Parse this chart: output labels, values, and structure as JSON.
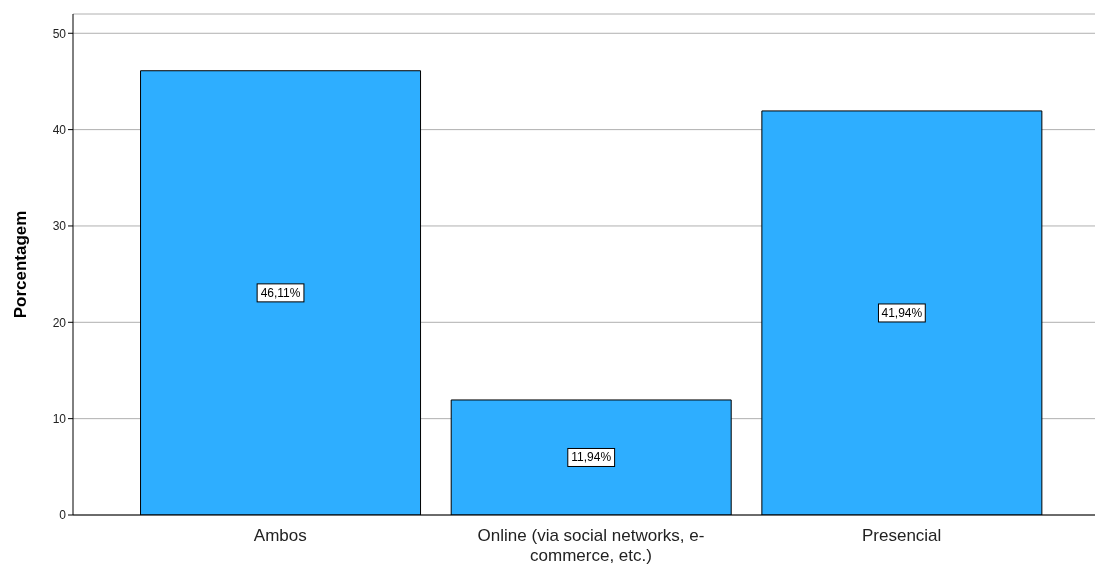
{
  "chart_data": {
    "type": "bar",
    "ylabel": "Porcentagem",
    "categories": [
      "Ambos",
      "Online (via social networks, e-commerce, etc.)",
      "Presencial"
    ],
    "values": [
      46.11,
      11.94,
      41.94
    ],
    "value_labels": [
      "46,11%",
      "11,94%",
      "41,94%"
    ],
    "color": "#2eaeff",
    "ylim": [
      0,
      52
    ],
    "yticks": [
      0,
      10,
      20,
      30,
      40,
      50
    ],
    "grid": "y",
    "legend": false
  }
}
